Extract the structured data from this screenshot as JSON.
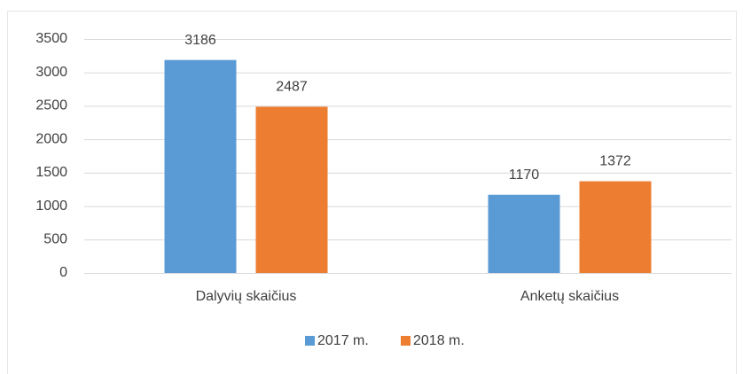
{
  "chart_data": {
    "type": "bar",
    "categories": [
      "Dalyvių skaičius",
      "Anketų skaičius"
    ],
    "series": [
      {
        "name": "2017 m.",
        "color": "#5b9bd5",
        "values": [
          3186,
          1170
        ]
      },
      {
        "name": "2018 m.",
        "color": "#ed7d31",
        "values": [
          2487,
          1372
        ]
      }
    ],
    "ylim": [
      0,
      3500
    ],
    "yticks": [
      0,
      500,
      1000,
      1500,
      2000,
      2500,
      3000,
      3500
    ],
    "grid": true,
    "legend": "bottom"
  }
}
